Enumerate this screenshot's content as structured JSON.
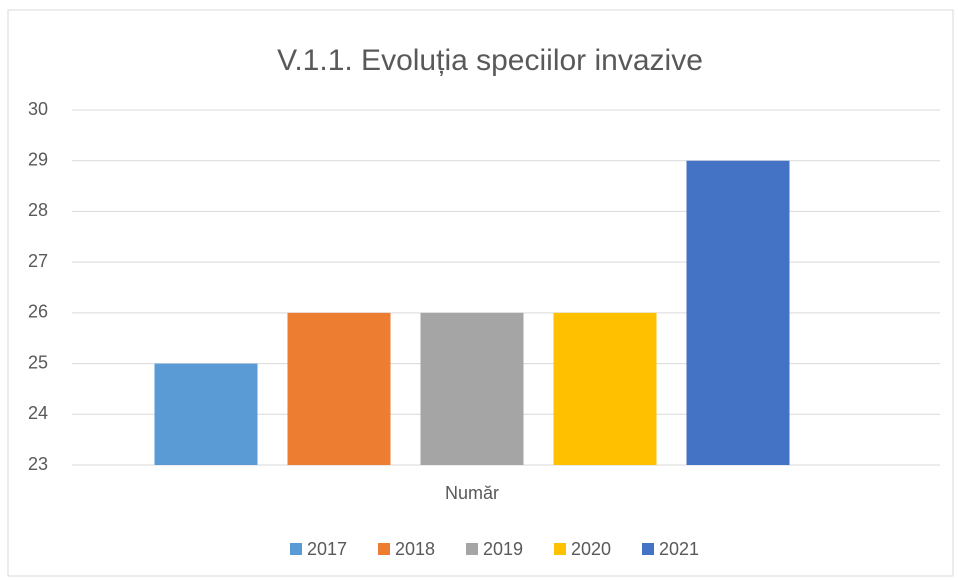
{
  "chart_data": {
    "type": "bar",
    "title": "V.1.1. Evoluția speciilor invazive",
    "categories": [
      "Număr"
    ],
    "series": [
      {
        "name": "2017",
        "color": "#5b9bd5",
        "values": [
          25
        ]
      },
      {
        "name": "2018",
        "color": "#ed7d31",
        "values": [
          26
        ]
      },
      {
        "name": "2019",
        "color": "#a5a5a5",
        "values": [
          26
        ]
      },
      {
        "name": "2020",
        "color": "#ffc000",
        "values": [
          26
        ]
      },
      {
        "name": "2021",
        "color": "#4472c4",
        "values": [
          29
        ]
      }
    ],
    "ylim": [
      23,
      30
    ],
    "yticks": [
      23,
      24,
      25,
      26,
      27,
      28,
      29,
      30
    ],
    "grid": true,
    "legend": "bottom"
  }
}
